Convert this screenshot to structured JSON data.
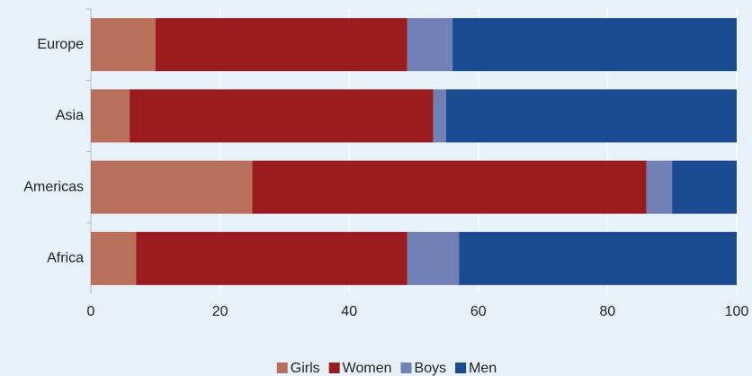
{
  "chart_data": {
    "type": "stacked-bar-horizontal",
    "categories": [
      "Europe",
      "Asia",
      "Americas",
      "Africa"
    ],
    "series": [
      {
        "name": "Girls",
        "color": "#b8705a",
        "values": [
          10,
          6,
          25,
          7
        ]
      },
      {
        "name": "Women",
        "color": "#9b1c1f",
        "values": [
          39,
          47,
          61,
          42
        ]
      },
      {
        "name": "Boys",
        "color": "#7281b5",
        "values": [
          7,
          2,
          4,
          8
        ]
      },
      {
        "name": "Men",
        "color": "#1a4a8f",
        "values": [
          44,
          45,
          10,
          43
        ]
      }
    ],
    "xlim": [
      0,
      100
    ],
    "xticks": [
      0,
      20,
      40,
      60,
      80,
      100
    ],
    "grid": true,
    "legend": "bottom"
  }
}
